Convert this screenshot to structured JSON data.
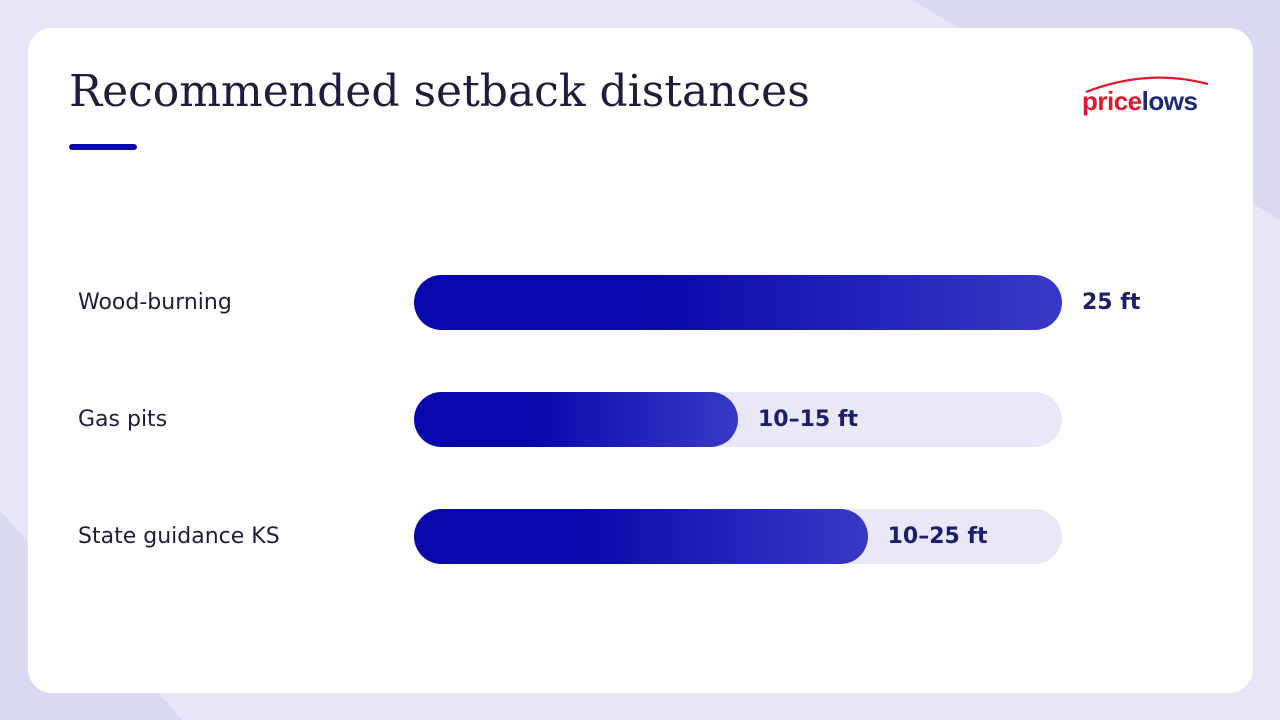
{
  "colors": {
    "page_background": "#e6e6f6",
    "card_background": "#ffffff",
    "accent": "#0a0aa8",
    "bar_start": "#0707ab",
    "bar_end": "#3a39c6",
    "track": "#e8e8f7",
    "text": "#1b1f3b",
    "value_text": "#1b1f6b",
    "logo_red": "#e0182d",
    "logo_navy": "#1e2a78"
  },
  "logo": {
    "text_part1": "price",
    "text_part2": "lows"
  },
  "chart_data": {
    "type": "bar",
    "orientation": "horizontal",
    "title": "Recommended setback distances",
    "xlabel": "",
    "ylabel": "",
    "xlim": [
      0,
      25
    ],
    "grid": false,
    "legend": "none",
    "categories": [
      "Wood-burning",
      "Gas pits",
      "State guidance KS"
    ],
    "value_labels": [
      "25 ft",
      "10–15 ft",
      "10–25 ft"
    ],
    "values": [
      25,
      12.5,
      17.5
    ]
  }
}
